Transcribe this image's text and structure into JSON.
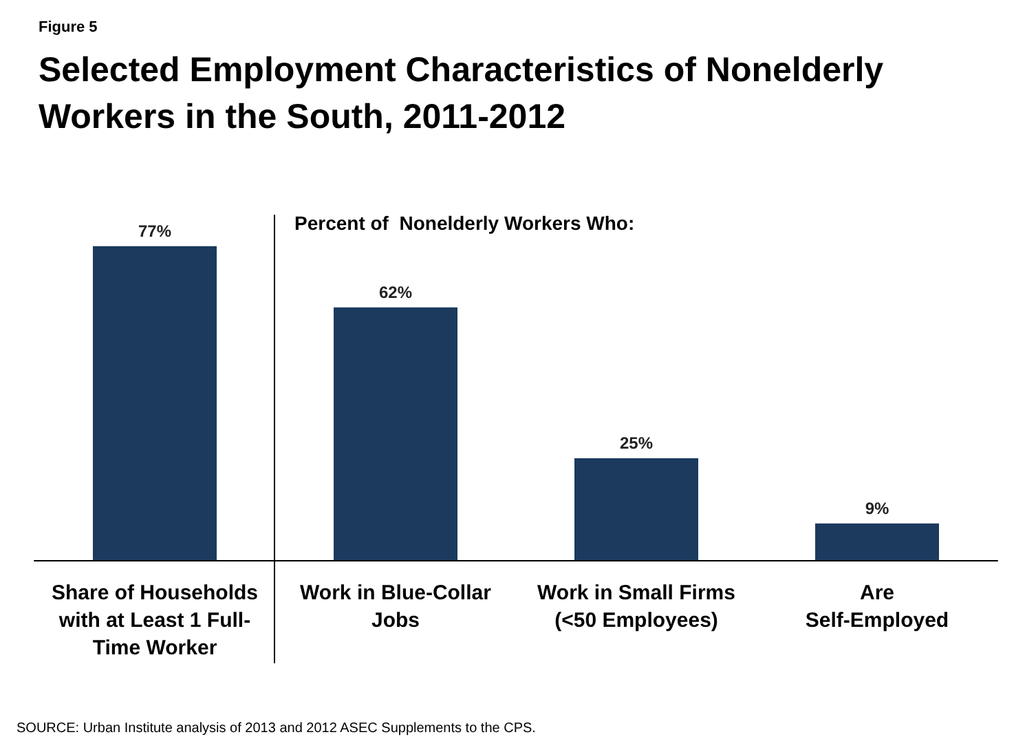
{
  "chart_data": {
    "type": "bar",
    "subtitle": "Figure 5",
    "title": "Selected Employment Characteristics of Nonelderly Workers in the South, 2011-2012",
    "categories": [
      "Share of Households\nwith at Least 1 Full-\nTime Worker",
      "Work in Blue-Collar\nJobs",
      "Work in Small Firms\n(<50 Employees)",
      "Are\nSelf-Employed"
    ],
    "values": [
      77,
      62,
      25,
      9
    ],
    "color": "#1b3a5e",
    "data_labels": true,
    "value_labels": [
      "77%",
      "62%",
      "25%",
      "9%"
    ],
    "annotations": [
      "Percent of  Nonelderly Workers Who:",
      "SOURCE: Urban Institute analysis of 2013 and 2012 ASEC Supplements to the CPS."
    ]
  }
}
